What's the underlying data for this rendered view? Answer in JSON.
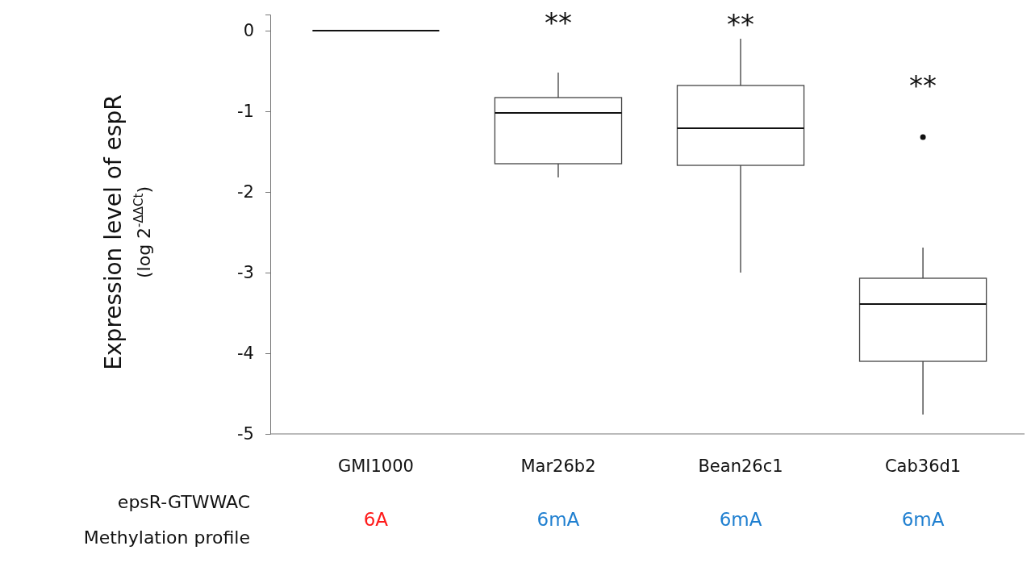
{
  "chart_data": {
    "type": "box",
    "ylabel": "Expression level of espR\n(log 2$^{-ΔΔCt}$)",
    "categories": [
      "GMI1000",
      "Mar26b2",
      "Bean26c1",
      "Cab36d1"
    ],
    "boxes": [
      {
        "low": 0,
        "q1": 0,
        "median": 0,
        "q3": 0,
        "high": 0
      },
      {
        "low": -1.82,
        "q1": -1.65,
        "median": -1.02,
        "q3": -0.83,
        "high": -0.52
      },
      {
        "low": -3.0,
        "q1": -1.67,
        "median": -1.21,
        "q3": -0.68,
        "high": -0.1
      },
      {
        "low": -4.76,
        "q1": -4.1,
        "median": -3.39,
        "q3": -3.07,
        "high": -2.69,
        "outliers": [
          -1.32
        ]
      }
    ],
    "ylim": [
      -5,
      0.2
    ],
    "yticks": [
      0,
      -1,
      -2,
      -3,
      -4,
      -5
    ],
    "annotations": [
      "**",
      "**",
      "**",
      "epsR-GTWWAC",
      "Methylation profile",
      "6A",
      "6mA",
      "6mA",
      "6mA"
    ]
  }
}
